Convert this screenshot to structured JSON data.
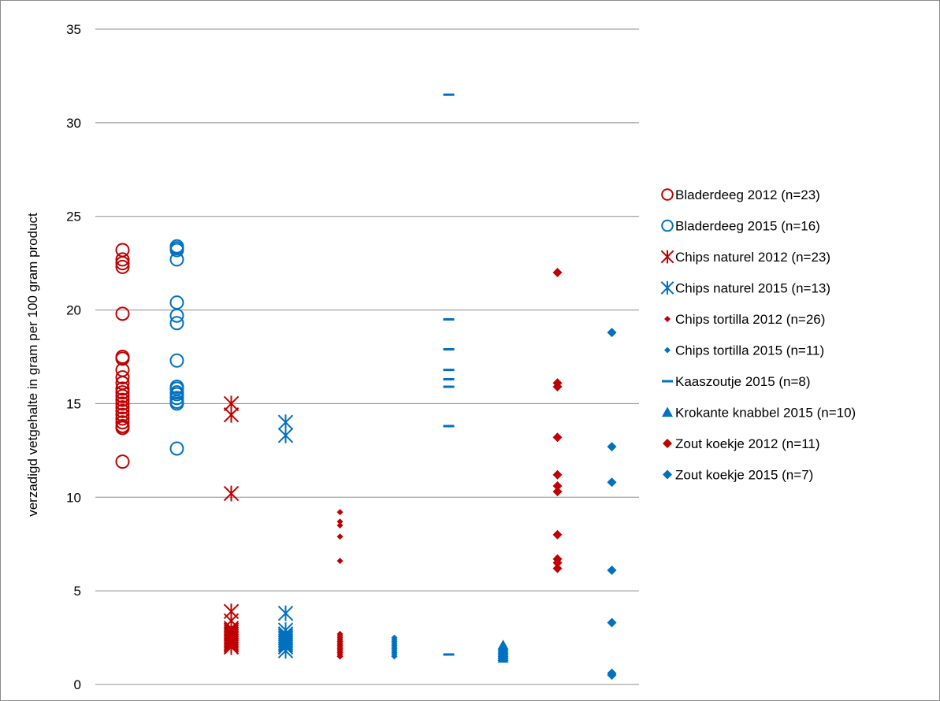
{
  "chart_data": {
    "type": "scatter",
    "title": "",
    "xlabel": "",
    "ylabel": "verzadigd vetgehalte in gram per 100 gram product",
    "ylim": [
      0,
      35
    ],
    "yticks": [
      0,
      5,
      10,
      15,
      20,
      25,
      30,
      35
    ],
    "grid": "horizontal",
    "legend_position": "right",
    "colors": {
      "red": "#c00000",
      "blue": "#0070c0",
      "grid": "#8c8c8c"
    },
    "series": [
      {
        "name": "Bladerdeeg 2012 (n=23)",
        "marker": "circle-open",
        "color": "#c00000",
        "x": 1,
        "values": [
          23.2,
          22.7,
          22.5,
          22.3,
          19.8,
          17.5,
          17.4,
          16.8,
          16.4,
          16.1,
          15.8,
          15.6,
          15.4,
          15.2,
          15.0,
          14.8,
          14.6,
          14.4,
          14.2,
          14.0,
          13.8,
          13.7,
          11.9
        ]
      },
      {
        "name": "Bladerdeeg 2015 (n=16)",
        "marker": "circle-open",
        "color": "#0070c0",
        "x": 2,
        "values": [
          23.4,
          23.3,
          23.2,
          22.7,
          20.4,
          19.7,
          19.3,
          17.3,
          15.9,
          15.8,
          15.6,
          15.5,
          15.3,
          15.1,
          15.0,
          12.6
        ]
      },
      {
        "name": "Chips naturel 2012 (n=23)",
        "marker": "asterisk",
        "color": "#c00000",
        "x": 3,
        "values": [
          15.0,
          14.4,
          10.2,
          3.9,
          3.4,
          3.0,
          2.9,
          2.8,
          2.7,
          2.6,
          2.6,
          2.5,
          2.5,
          2.4,
          2.4,
          2.3,
          2.3,
          2.2,
          2.2,
          2.1,
          2.1,
          2.0,
          2.0
        ]
      },
      {
        "name": "Chips naturel 2015 (n=13)",
        "marker": "asterisk",
        "color": "#0070c0",
        "x": 4,
        "values": [
          14.0,
          13.3,
          3.8,
          2.9,
          2.7,
          2.6,
          2.5,
          2.4,
          2.3,
          2.2,
          2.1,
          2.0,
          1.8
        ]
      },
      {
        "name": "Chips tortilla 2012 (n=26)",
        "marker": "diamond-small",
        "color": "#c00000",
        "x": 5,
        "values": [
          9.2,
          8.7,
          8.5,
          7.9,
          6.6,
          2.7,
          2.6,
          2.5,
          2.4,
          2.3,
          2.3,
          2.2,
          2.2,
          2.1,
          2.1,
          2.0,
          2.0,
          1.9,
          1.9,
          1.8,
          1.8,
          1.7,
          1.7,
          1.6,
          1.5,
          1.5
        ]
      },
      {
        "name": "Chips tortilla 2015 (n=11)",
        "marker": "diamond-small",
        "color": "#0070c0",
        "x": 6,
        "values": [
          2.5,
          2.4,
          2.3,
          2.2,
          2.1,
          2.0,
          1.9,
          1.8,
          1.7,
          1.6,
          1.5
        ]
      },
      {
        "name": "Kaaszoutje 2015 (n=8)",
        "marker": "dash",
        "color": "#0070c0",
        "x": 7,
        "values": [
          31.5,
          19.5,
          17.9,
          16.8,
          16.3,
          15.9,
          13.8,
          1.6
        ]
      },
      {
        "name": "Krokante knabbel 2015 (n=10)",
        "marker": "triangle",
        "color": "#0070c0",
        "x": 8,
        "values": [
          2.1,
          2.0,
          1.9,
          1.8,
          1.8,
          1.7,
          1.6,
          1.6,
          1.5,
          1.4
        ]
      },
      {
        "name": "Zout koekje 2012 (n=11)",
        "marker": "diamond",
        "color": "#c00000",
        "x": 9,
        "values": [
          22.0,
          16.1,
          15.9,
          13.2,
          11.2,
          10.6,
          10.3,
          8.0,
          6.7,
          6.5,
          6.2
        ]
      },
      {
        "name": "Zout koekje 2015 (n=7)",
        "marker": "diamond",
        "color": "#0070c0",
        "x": 10,
        "values": [
          18.8,
          12.7,
          10.8,
          6.1,
          3.3,
          0.6,
          0.5
        ]
      }
    ]
  }
}
